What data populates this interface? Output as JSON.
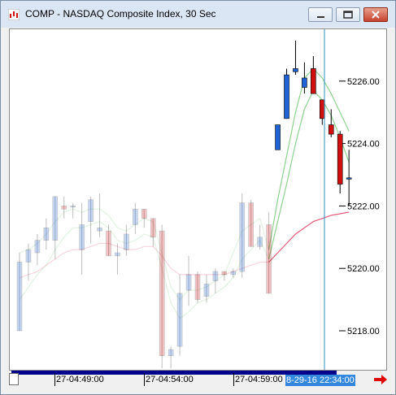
{
  "window": {
    "title": "COMP - NASDAQ Composite Index, 30 Sec",
    "controls": [
      "minimize",
      "maximize",
      "close"
    ]
  },
  "colors": {
    "up": "#1f63d6",
    "down": "#d10f0f",
    "cursor": "#2a8fc0",
    "ma_fast": "#8fd08f",
    "ma_slow": "#e35a7a",
    "axis_highlight": "#3388dd"
  },
  "xaxis": {
    "labels": [
      "27-04:49:00",
      "27-04:54:00",
      "27-04:59:00"
    ],
    "cursor_label": "8-29-16 22:34:00"
  },
  "chart_data": {
    "type": "candlestick",
    "title": "",
    "yticks": [
      5218,
      5220,
      5222,
      5224,
      5226
    ],
    "ylim": [
      5216.8,
      5228.2
    ],
    "faded_history": true,
    "candles": [
      {
        "o": 5218.0,
        "h": 5220.5,
        "l": 5218.0,
        "c": 5220.2
      },
      {
        "o": 5220.2,
        "h": 5220.8,
        "l": 5219.6,
        "c": 5220.6
      },
      {
        "o": 5220.5,
        "h": 5221.1,
        "l": 5220.1,
        "c": 5220.9
      },
      {
        "o": 5220.9,
        "h": 5221.6,
        "l": 5220.6,
        "c": 5221.3
      },
      {
        "o": 5220.9,
        "h": 5222.3,
        "l": 5220.3,
        "c": 5222.3
      },
      {
        "o": 5222.0,
        "h": 5222.3,
        "l": 5221.6,
        "c": 5221.9
      },
      {
        "o": 5222.0,
        "h": 5222.1,
        "l": 5221.6,
        "c": 5222.0
      },
      {
        "o": 5220.6,
        "h": 5222.1,
        "l": 5219.8,
        "c": 5221.4
      },
      {
        "o": 5221.5,
        "h": 5222.3,
        "l": 5220.8,
        "c": 5222.2
      },
      {
        "o": 5221.2,
        "h": 5222.4,
        "l": 5221.0,
        "c": 5221.3
      },
      {
        "o": 5221.2,
        "h": 5221.4,
        "l": 5220.4,
        "c": 5220.4
      },
      {
        "o": 5220.4,
        "h": 5220.8,
        "l": 5219.8,
        "c": 5220.5
      },
      {
        "o": 5220.6,
        "h": 5221.4,
        "l": 5220.4,
        "c": 5221.1
      },
      {
        "o": 5221.4,
        "h": 5222.1,
        "l": 5221.1,
        "c": 5221.9
      },
      {
        "o": 5221.9,
        "h": 5221.9,
        "l": 5221.3,
        "c": 5221.6
      },
      {
        "o": 5221.6,
        "h": 5221.6,
        "l": 5220.7,
        "c": 5221.0
      },
      {
        "o": 5221.2,
        "h": 5221.4,
        "l": 5216.8,
        "c": 5217.2
      },
      {
        "o": 5217.2,
        "h": 5217.5,
        "l": 5216.8,
        "c": 5217.4
      },
      {
        "o": 5217.5,
        "h": 5219.8,
        "l": 5217.2,
        "c": 5219.2
      },
      {
        "o": 5219.3,
        "h": 5220.4,
        "l": 5218.8,
        "c": 5219.8
      },
      {
        "o": 5219.8,
        "h": 5219.9,
        "l": 5218.9,
        "c": 5219.0
      },
      {
        "o": 5219.1,
        "h": 5219.8,
        "l": 5218.9,
        "c": 5219.5
      },
      {
        "o": 5219.6,
        "h": 5220.0,
        "l": 5219.2,
        "c": 5219.9
      },
      {
        "o": 5219.9,
        "h": 5219.9,
        "l": 5219.6,
        "c": 5219.8
      },
      {
        "o": 5219.8,
        "h": 5220.0,
        "l": 5219.7,
        "c": 5219.9
      },
      {
        "o": 5219.9,
        "h": 5222.4,
        "l": 5219.7,
        "c": 5222.1
      },
      {
        "o": 5222.1,
        "h": 5222.2,
        "l": 5220.7,
        "c": 5220.7
      },
      {
        "o": 5220.7,
        "h": 5221.4,
        "l": 5220.6,
        "c": 5221.0
      },
      {
        "o": 5221.4,
        "h": 5221.8,
        "l": 5219.2,
        "c": 5219.2
      },
      {
        "o": 5223.8,
        "h": 5224.6,
        "l": 5223.8,
        "c": 5224.6
      },
      {
        "o": 5224.8,
        "h": 5226.4,
        "l": 5224.8,
        "c": 5226.2
      },
      {
        "o": 5226.3,
        "h": 5227.3,
        "l": 5226.2,
        "c": 5226.4
      },
      {
        "o": 5225.8,
        "h": 5226.6,
        "l": 5225.6,
        "c": 5226.1
      },
      {
        "o": 5226.4,
        "h": 5226.8,
        "l": 5225.6,
        "c": 5225.6
      },
      {
        "o": 5225.4,
        "h": 5225.4,
        "l": 5224.6,
        "c": 5224.8
      },
      {
        "o": 5224.6,
        "h": 5225.1,
        "l": 5224.2,
        "c": 5224.3
      },
      {
        "o": 5224.3,
        "h": 5224.4,
        "l": 5222.4,
        "c": 5222.7
      },
      {
        "o": 5222.9,
        "h": 5223.8,
        "l": 5222.0,
        "c": 5222.9
      }
    ],
    "faded_count": 29,
    "ma_upper": [
      5220.5,
      5220.6,
      5220.8,
      5221.1,
      5221.5,
      5221.8,
      5221.9,
      5221.8,
      5221.9,
      5221.9,
      5221.7,
      5221.3,
      5221.2,
      5221.4,
      5221.6,
      5221.5,
      5220.5,
      5219.4,
      5219.0,
      5219.3,
      5219.3,
      5219.4,
      5219.6,
      5219.8,
      5220.5,
      5221.2,
      5221.4,
      5221.6,
      5220.6,
      5222.2,
      5223.6,
      5225.0,
      5226.1,
      5226.4,
      5226.1,
      5225.6,
      5225.0,
      5224.4
    ],
    "ma_lower": [
      5219.0,
      5219.4,
      5219.8,
      5220.1,
      5220.6,
      5221.0,
      5221.3,
      5221.3,
      5221.4,
      5221.5,
      5221.3,
      5220.9,
      5220.8,
      5220.9,
      5221.1,
      5221.0,
      5220.0,
      5218.9,
      5218.4,
      5218.6,
      5218.9,
      5219.0,
      5219.2,
      5219.4,
      5219.7,
      5220.3,
      5220.6,
      5220.9,
      5220.3,
      5221.5,
      5222.7,
      5224.0,
      5225.1,
      5225.7,
      5225.4,
      5224.9,
      5224.2,
      5223.4
    ],
    "ma_slow": [
      5219.7,
      5219.8,
      5219.9,
      5220.1,
      5220.3,
      5220.5,
      5220.6,
      5220.6,
      5220.7,
      5220.8,
      5220.8,
      5220.7,
      5220.6,
      5220.6,
      5220.7,
      5220.7,
      5220.4,
      5220.0,
      5219.8,
      5219.8,
      5219.8,
      5219.8,
      5219.8,
      5219.8,
      5219.9,
      5220.0,
      5220.1,
      5220.2,
      5220.2,
      5220.5,
      5220.8,
      5221.1,
      5221.3,
      5221.5,
      5221.6,
      5221.7,
      5221.75,
      5221.8
    ]
  }
}
